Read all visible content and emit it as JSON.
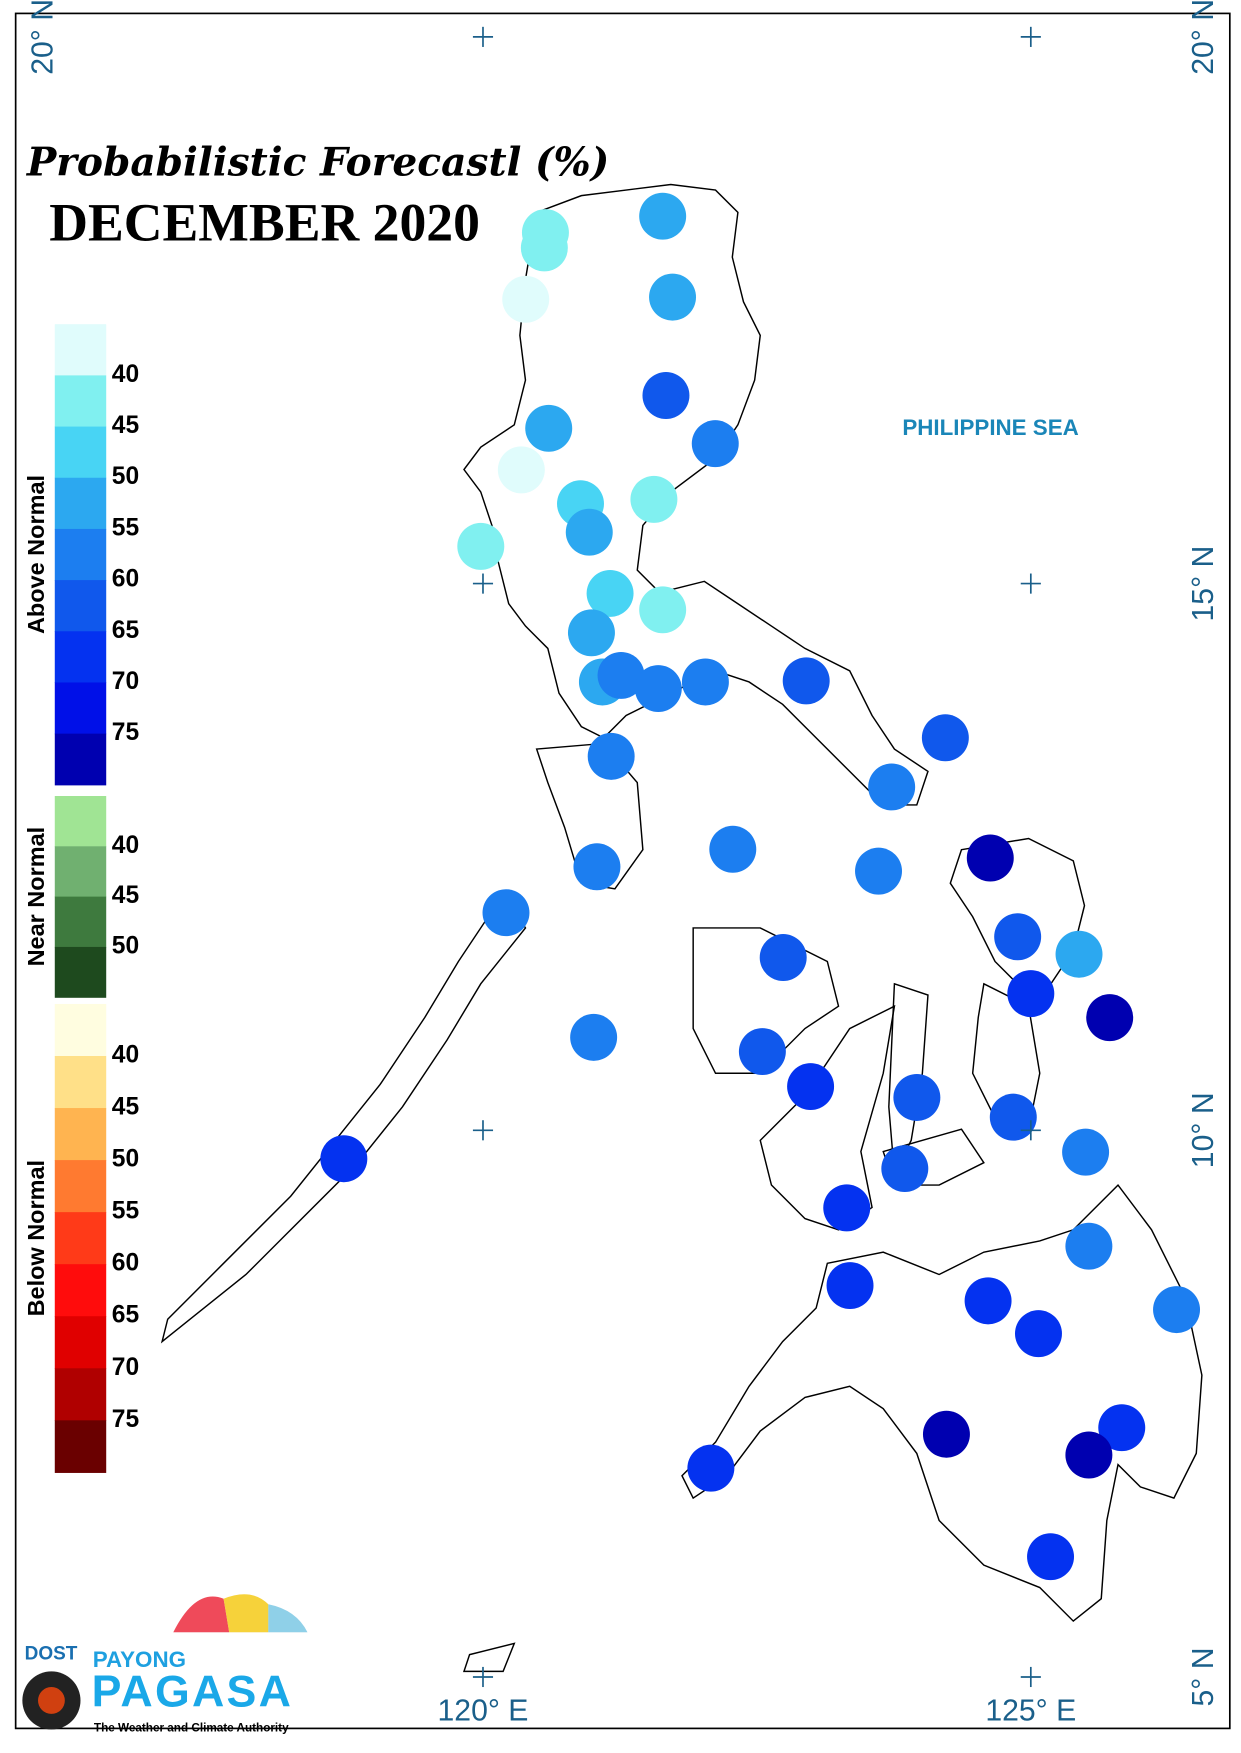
{
  "map": {
    "title": "Probabilistic Forecastl (%)",
    "subtitle": "DECEMBER 2020",
    "sea_label": "PHILIPPINE SEA",
    "lon_ticks": [
      {
        "value": 120,
        "label": "120° E"
      },
      {
        "value": 125,
        "label": "125° E"
      }
    ],
    "lat_ticks": [
      {
        "value": 5,
        "label": "5° N"
      },
      {
        "value": 10,
        "label": "10° N"
      },
      {
        "value": 15,
        "label": "15° N"
      },
      {
        "value": 20,
        "label": "20° N"
      }
    ],
    "legend": [
      {
        "name": "Above Normal",
        "colors": [
          "#e0fcfc",
          "#80f0f0",
          "#48d4f4",
          "#2ca8f0",
          "#1c7ef0",
          "#1058ec",
          "#0432f0",
          "#0010e8",
          "#0000b0"
        ],
        "ticks": [
          40,
          45,
          50,
          55,
          60,
          65,
          70,
          75
        ]
      },
      {
        "name": "Near Normal",
        "colors": [
          "#a0e494",
          "#70b070",
          "#3e7a3e",
          "#1e4a1e"
        ],
        "ticks": [
          40,
          45,
          50
        ]
      },
      {
        "name": "Below Normal",
        "colors": [
          "#fffde0",
          "#ffe088",
          "#ffb450",
          "#ff7a30",
          "#ff3a18",
          "#ff0c0c",
          "#e00000",
          "#b00000",
          "#6a0000"
        ],
        "ticks": [
          40,
          45,
          50,
          55,
          60,
          65,
          70,
          75
        ]
      }
    ],
    "stations": [
      {
        "lon": 121.64,
        "lat": 18.36,
        "value": 53
      },
      {
        "lon": 120.57,
        "lat": 18.21,
        "value": 43
      },
      {
        "lon": 120.56,
        "lat": 18.07,
        "value": 43
      },
      {
        "lon": 120.39,
        "lat": 17.6,
        "value": 38
      },
      {
        "lon": 121.73,
        "lat": 17.62,
        "value": 53
      },
      {
        "lon": 121.67,
        "lat": 16.72,
        "value": 63
      },
      {
        "lon": 120.6,
        "lat": 16.42,
        "value": 53
      },
      {
        "lon": 122.12,
        "lat": 16.28,
        "value": 58
      },
      {
        "lon": 120.35,
        "lat": 16.04,
        "value": 38
      },
      {
        "lon": 120.89,
        "lat": 15.73,
        "value": 48
      },
      {
        "lon": 121.56,
        "lat": 15.77,
        "value": 43
      },
      {
        "lon": 120.97,
        "lat": 15.47,
        "value": 53
      },
      {
        "lon": 119.98,
        "lat": 15.34,
        "value": 43
      },
      {
        "lon": 121.16,
        "lat": 14.91,
        "value": 48
      },
      {
        "lon": 121.64,
        "lat": 14.76,
        "value": 43
      },
      {
        "lon": 120.99,
        "lat": 14.55,
        "value": 53
      },
      {
        "lon": 121.09,
        "lat": 14.1,
        "value": 53
      },
      {
        "lon": 121.26,
        "lat": 14.16,
        "value": 58
      },
      {
        "lon": 121.6,
        "lat": 14.04,
        "value": 58
      },
      {
        "lon": 122.03,
        "lat": 14.1,
        "value": 58
      },
      {
        "lon": 122.95,
        "lat": 14.11,
        "value": 63
      },
      {
        "lon": 124.22,
        "lat": 13.59,
        "value": 63
      },
      {
        "lon": 121.17,
        "lat": 13.42,
        "value": 58
      },
      {
        "lon": 123.73,
        "lat": 13.14,
        "value": 58
      },
      {
        "lon": 122.28,
        "lat": 12.57,
        "value": 58
      },
      {
        "lon": 124.63,
        "lat": 12.49,
        "value": 78
      },
      {
        "lon": 121.04,
        "lat": 12.41,
        "value": 58
      },
      {
        "lon": 123.61,
        "lat": 12.37,
        "value": 58
      },
      {
        "lon": 120.21,
        "lat": 11.99,
        "value": 58
      },
      {
        "lon": 124.88,
        "lat": 11.77,
        "value": 63
      },
      {
        "lon": 125.44,
        "lat": 11.61,
        "value": 53
      },
      {
        "lon": 122.74,
        "lat": 11.58,
        "value": 63
      },
      {
        "lon": 125.0,
        "lat": 11.25,
        "value": 68
      },
      {
        "lon": 125.72,
        "lat": 11.03,
        "value": 78
      },
      {
        "lon": 121.01,
        "lat": 10.85,
        "value": 58
      },
      {
        "lon": 122.55,
        "lat": 10.72,
        "value": 63
      },
      {
        "lon": 122.99,
        "lat": 10.4,
        "value": 68
      },
      {
        "lon": 123.96,
        "lat": 10.3,
        "value": 63
      },
      {
        "lon": 124.84,
        "lat": 10.12,
        "value": 63
      },
      {
        "lon": 118.73,
        "lat": 9.74,
        "value": 68
      },
      {
        "lon": 125.5,
        "lat": 9.8,
        "value": 58
      },
      {
        "lon": 123.85,
        "lat": 9.65,
        "value": 63
      },
      {
        "lon": 123.32,
        "lat": 9.29,
        "value": 68
      },
      {
        "lon": 125.53,
        "lat": 8.94,
        "value": 58
      },
      {
        "lon": 123.35,
        "lat": 8.58,
        "value": 68
      },
      {
        "lon": 124.61,
        "lat": 8.44,
        "value": 68
      },
      {
        "lon": 126.33,
        "lat": 8.36,
        "value": 58
      },
      {
        "lon": 125.07,
        "lat": 8.14,
        "value": 68
      },
      {
        "lon": 124.23,
        "lat": 7.22,
        "value": 78
      },
      {
        "lon": 125.83,
        "lat": 7.28,
        "value": 68
      },
      {
        "lon": 125.53,
        "lat": 7.03,
        "value": 78
      },
      {
        "lon": 122.08,
        "lat": 6.91,
        "value": 68
      },
      {
        "lon": 125.18,
        "lat": 6.1,
        "value": 68
      }
    ]
  },
  "logo": {
    "agency": "DOST",
    "brand_top": "PAYONG",
    "brand": "PAGASA",
    "tagline": "The Weather and Climate Authority"
  }
}
